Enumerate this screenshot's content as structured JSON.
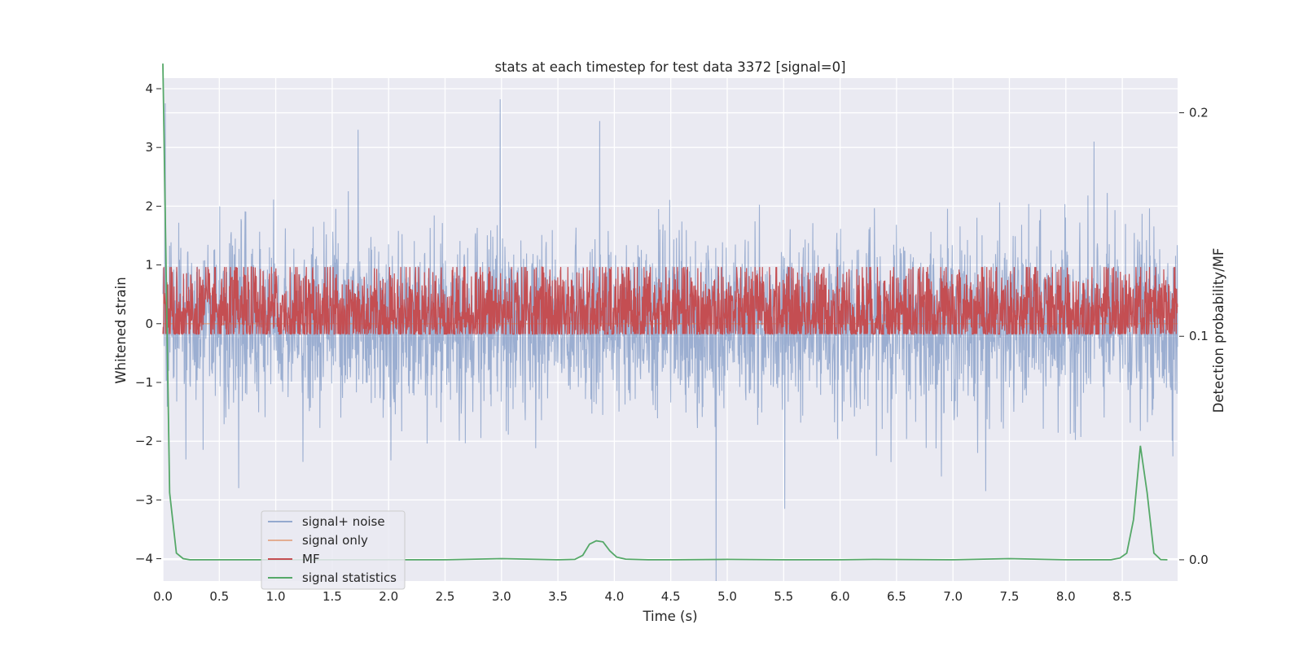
{
  "chart_data": {
    "type": "line",
    "title": "stats at each timestep for test data 3372 [signal=0]",
    "xlabel": "Time (s)",
    "ylabel": "Whitened strain",
    "y2label": "Detection probability/MF",
    "xlim": [
      0.0,
      8.99
    ],
    "ylim": [
      -4.38,
      4.18
    ],
    "y2lim": [
      -0.0095,
      0.2155
    ],
    "x_ticks": [
      0.0,
      0.5,
      1.0,
      1.5,
      2.0,
      2.5,
      3.0,
      3.5,
      4.0,
      4.5,
      5.0,
      5.5,
      6.0,
      6.5,
      7.0,
      7.5,
      8.0,
      8.5
    ],
    "x_tick_labels": [
      "0.0",
      "0.5",
      "1.0",
      "1.5",
      "2.0",
      "2.5",
      "3.0",
      "3.5",
      "4.0",
      "4.5",
      "5.0",
      "5.5",
      "6.0",
      "6.5",
      "7.0",
      "7.5",
      "8.0",
      "8.5"
    ],
    "y_ticks": [
      -4,
      -3,
      -2,
      -1,
      0,
      1,
      2,
      3,
      4
    ],
    "y_tick_labels": [
      "−4",
      "−3",
      "−2",
      "−1",
      "0",
      "1",
      "2",
      "3",
      "4"
    ],
    "y2_ticks": [
      0.0,
      0.1,
      0.2
    ],
    "y2_tick_labels": [
      "0.0",
      "0.1",
      "0.2"
    ],
    "grid": true,
    "legend_position": "lower-left",
    "colors": {
      "signal_noise": "#4c72b0",
      "signal_only": "#dd8452",
      "mf": "#c44e52",
      "signal_statistics": "#55a868",
      "plot_background": "#eaeaf2"
    },
    "series": [
      {
        "name": "signal+ noise",
        "axis": "left",
        "noise_sigma": 0.75,
        "samples": 3000,
        "peaks": [
          [
            2.99,
            3.82
          ],
          [
            4.9,
            -4.38
          ],
          [
            1.73,
            3.3
          ],
          [
            3.87,
            3.45
          ],
          [
            8.25,
            3.1
          ],
          [
            0.02,
            3.75
          ],
          [
            5.51,
            -3.15
          ],
          [
            0.67,
            -2.8
          ],
          [
            7.29,
            -2.85
          ]
        ]
      },
      {
        "name": "signal only",
        "axis": "left",
        "x": [
          0.0,
          8.99
        ],
        "y": [
          0.0,
          0.0
        ]
      },
      {
        "name": "MF",
        "axis": "right",
        "mean": 0.11,
        "amplitude": 0.012,
        "samples": 3000
      },
      {
        "name": "signal statistics",
        "axis": "right",
        "x": [
          0.0,
          0.06,
          0.12,
          0.18,
          0.24,
          0.3,
          0.6,
          1.0,
          2.0,
          2.5,
          3.0,
          3.5,
          3.65,
          3.72,
          3.78,
          3.84,
          3.9,
          3.96,
          4.02,
          4.1,
          4.3,
          4.5,
          5.0,
          5.5,
          6.0,
          6.3,
          7.0,
          7.5,
          8.0,
          8.4,
          8.48,
          8.54,
          8.6,
          8.66,
          8.72,
          8.78,
          8.84,
          8.9
        ],
        "y": [
          0.222,
          0.03,
          0.003,
          0.0005,
          0.0,
          0.0,
          0.0,
          0.0,
          0.0,
          0.0,
          0.0005,
          0.0,
          0.0002,
          0.002,
          0.007,
          0.0085,
          0.008,
          0.004,
          0.0012,
          0.0003,
          0.0,
          0.0,
          0.0002,
          0.0,
          0.0,
          0.0002,
          0.0,
          0.0005,
          0.0,
          0.0,
          0.0008,
          0.003,
          0.018,
          0.051,
          0.03,
          0.003,
          0.0001,
          0.0
        ]
      }
    ]
  }
}
